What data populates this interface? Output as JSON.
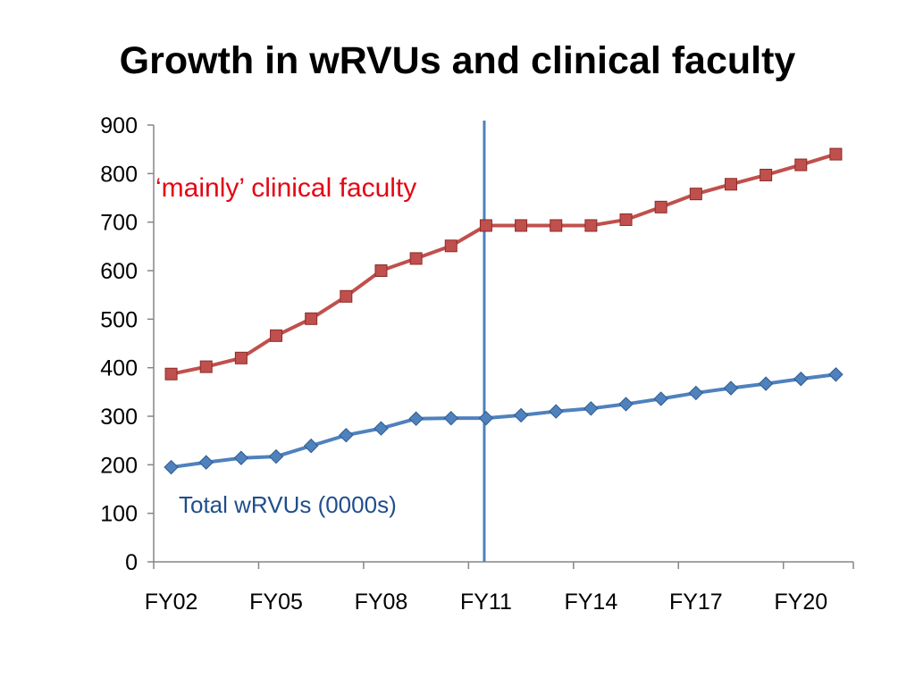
{
  "chart_data": {
    "type": "line",
    "title": "Growth in wRVUs and clinical faculty",
    "xlabel": "",
    "ylabel": "",
    "ylim": [
      0,
      900
    ],
    "yticks": [
      "0",
      "100",
      "200",
      "300",
      "400",
      "500",
      "600",
      "700",
      "800",
      "900"
    ],
    "x": [
      "FY02",
      "FY03",
      "FY04",
      "FY05",
      "FY06",
      "FY07",
      "FY08",
      "FY09",
      "FY10",
      "FY11",
      "FY12",
      "FY13",
      "FY14",
      "FY15",
      "FY16",
      "FY17",
      "FY18",
      "FY19",
      "FY20",
      "FY21"
    ],
    "xtick_labels": [
      "FY02",
      "FY05",
      "FY08",
      "FY11",
      "FY14",
      "FY17",
      "FY20"
    ],
    "grid": false,
    "vertical_marker_at": "FY11",
    "annotations": {
      "clinical": "‘mainly’ clinical faculty",
      "wrvu": "Total wRVUs (0000s)"
    },
    "series": [
      {
        "name": "‘mainly’ clinical faculty",
        "color": "#C0504D",
        "marker": "square",
        "values": [
          387,
          402,
          420,
          466,
          501,
          547,
          600,
          625,
          651,
          693,
          693,
          693,
          693,
          705,
          731,
          758,
          778,
          797,
          818,
          840
        ]
      },
      {
        "name": "Total wRVUs (0000s)",
        "color": "#4F81BD",
        "marker": "diamond",
        "values": [
          195,
          205,
          214,
          217,
          239,
          261,
          275,
          295,
          296,
          296,
          302,
          310,
          316,
          325,
          336,
          348,
          358,
          367,
          377,
          386
        ]
      }
    ],
    "colors": {
      "axis": "#868686",
      "marker_line": "#4F81BD"
    }
  }
}
